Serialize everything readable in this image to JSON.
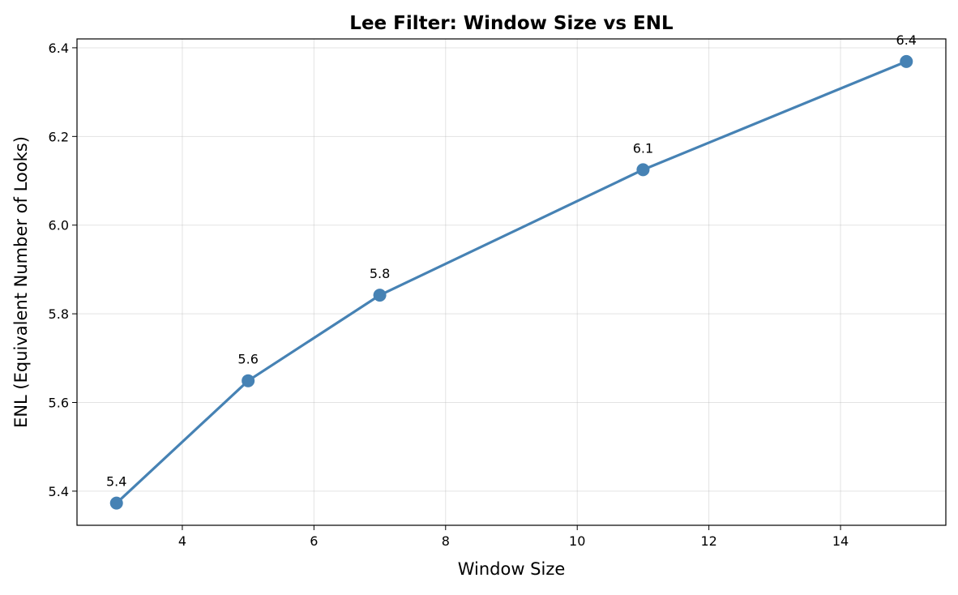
{
  "chart_data": {
    "type": "line",
    "title": "Lee Filter: Window Size vs ENL",
    "xlabel": "Window Size",
    "ylabel": "ENL (Equivalent Number of Looks)",
    "xlim": [
      2.4,
      15.6
    ],
    "ylim": [
      5.323,
      6.42
    ],
    "xticks": [
      4,
      6,
      8,
      10,
      12,
      14
    ],
    "xtick_labels": [
      "4",
      "6",
      "8",
      "10",
      "12",
      "14"
    ],
    "yticks": [
      5.4,
      5.6,
      5.8,
      6.0,
      6.2,
      6.4
    ],
    "ytick_labels": [
      "5.4",
      "5.6",
      "5.8",
      "6.0",
      "6.2",
      "6.4"
    ],
    "grid": true,
    "x": [
      3,
      5,
      7,
      11,
      15
    ],
    "y": [
      5.373,
      5.649,
      5.842,
      6.125,
      6.369
    ],
    "data_labels": [
      "5.4",
      "5.6",
      "5.8",
      "6.1",
      "6.4"
    ],
    "color": "#4682b4",
    "marker": "circle"
  }
}
